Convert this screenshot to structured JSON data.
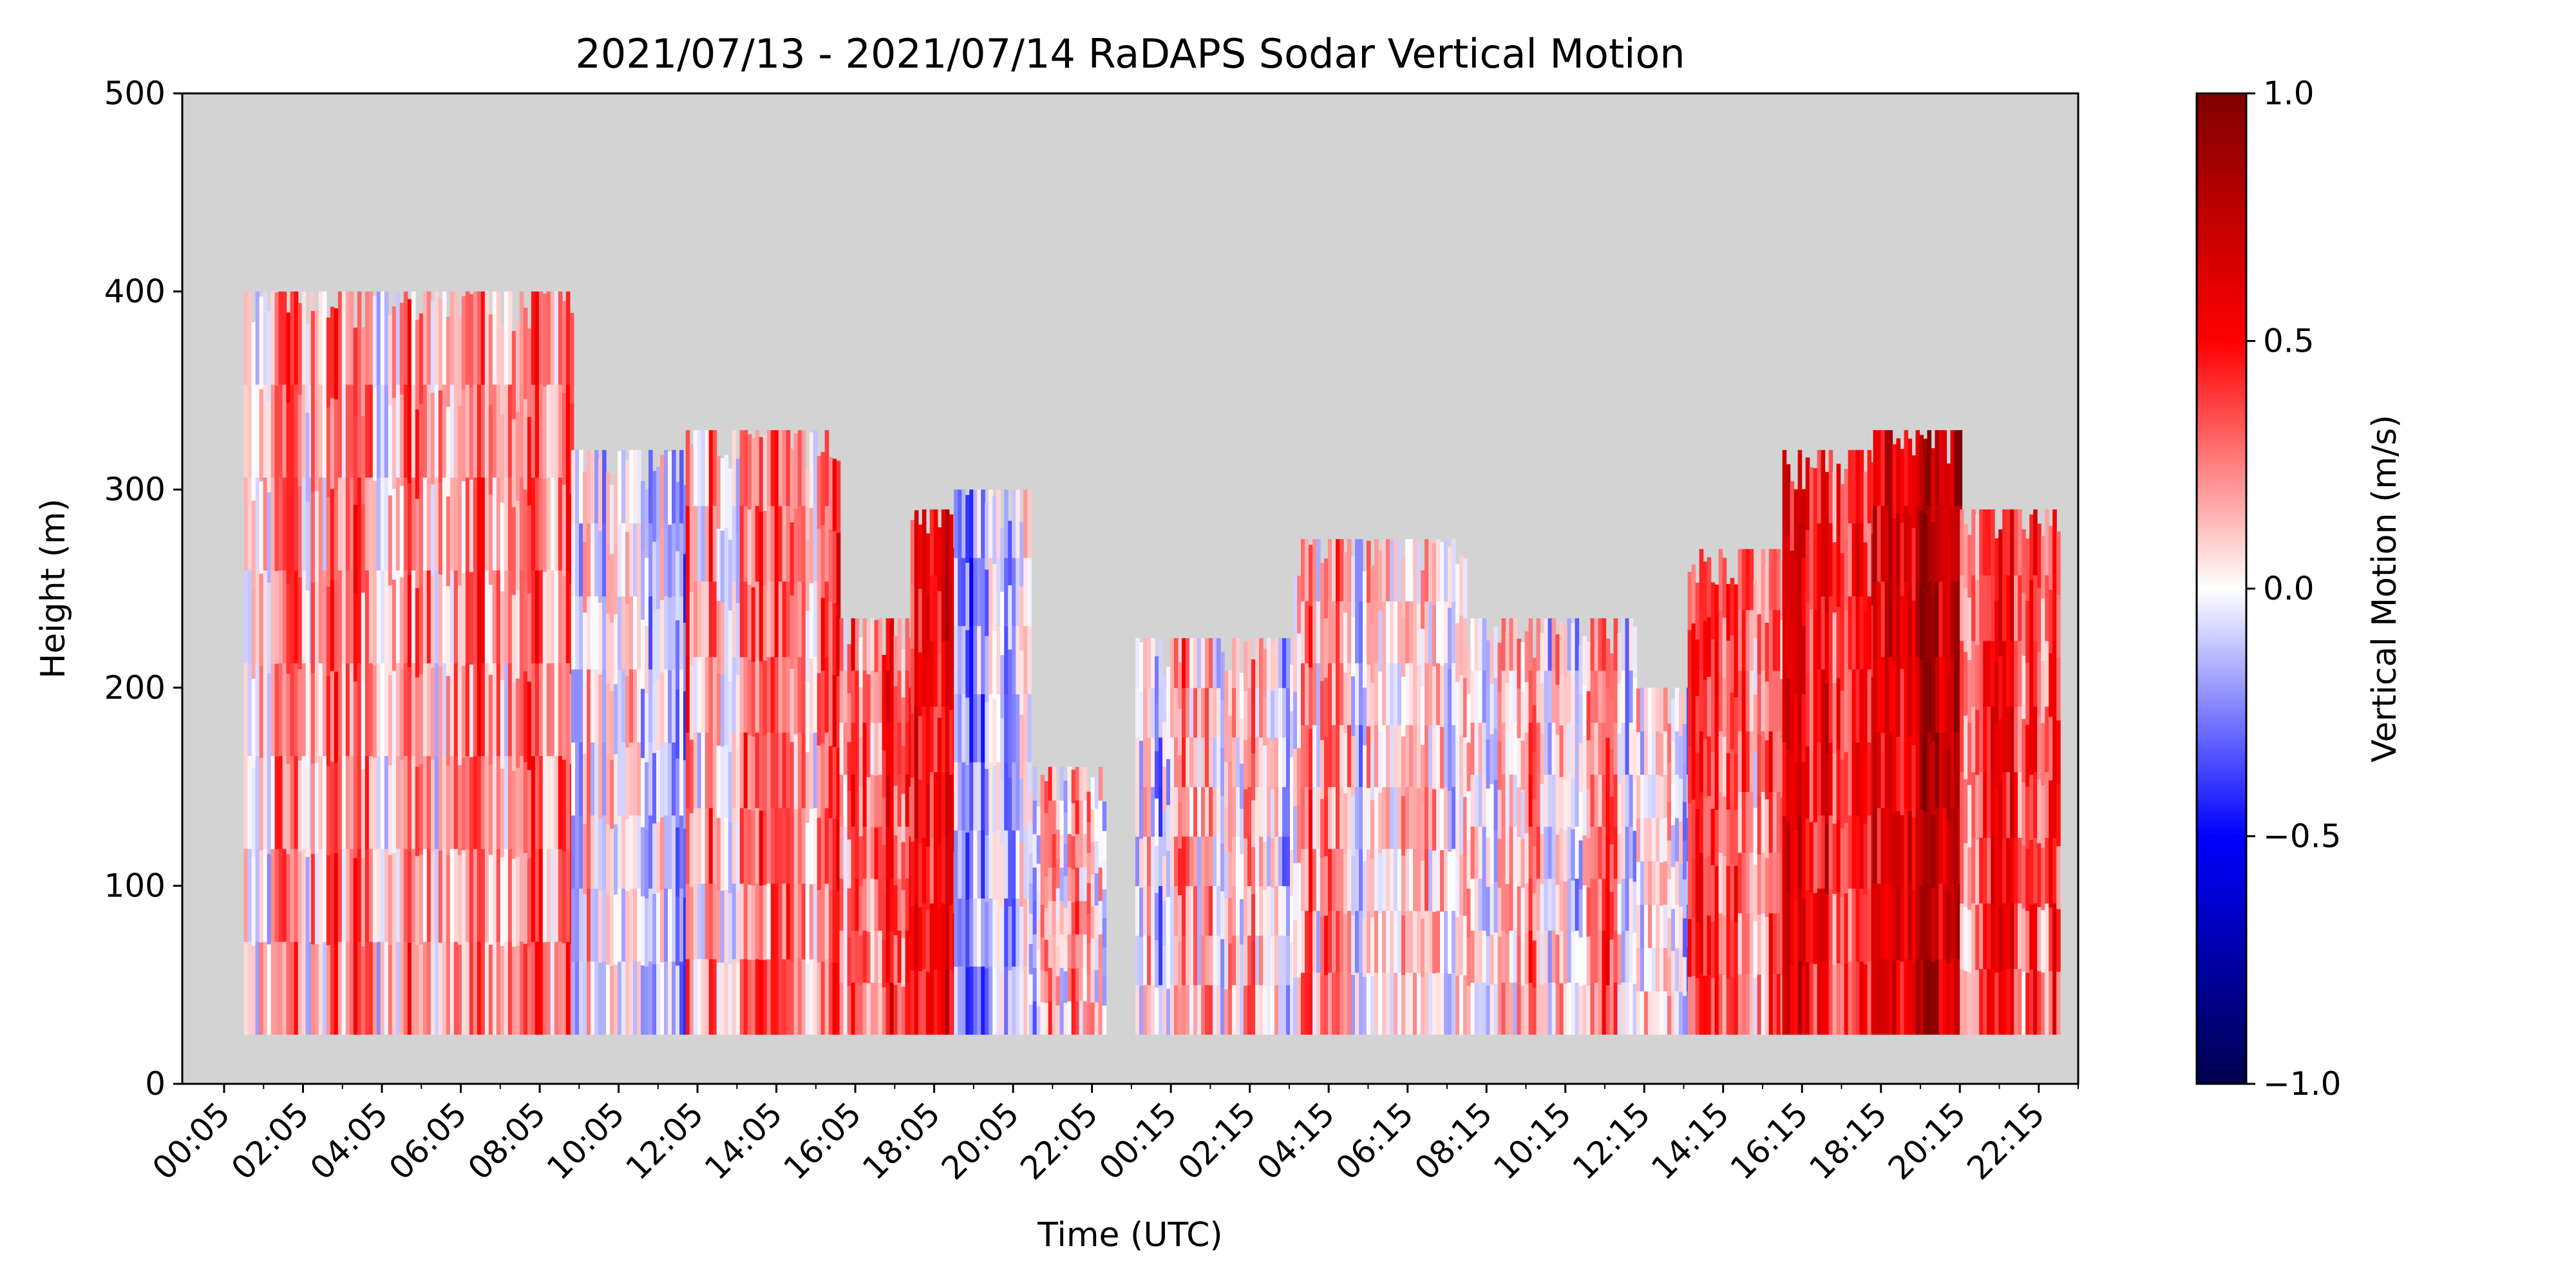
{
  "chart_data": {
    "type": "heatmap",
    "title": "2021/07/13 - 2021/07/14 RaDAPS Sodar Vertical Motion",
    "xlabel": "Time (UTC)",
    "ylabel": "Height (m)",
    "ylim": [
      0,
      500
    ],
    "y_ticks": [
      0,
      100,
      200,
      300,
      400,
      500
    ],
    "x_tick_labels": [
      "00:05",
      "02:05",
      "04:05",
      "06:05",
      "08:05",
      "10:05",
      "12:05",
      "14:05",
      "16:05",
      "18:05",
      "20:05",
      "22:05",
      "00:15",
      "02:15",
      "04:15",
      "06:15",
      "08:15",
      "10:15",
      "12:15",
      "14:15",
      "16:15",
      "18:15",
      "20:15",
      "22:15"
    ],
    "background_color": "#d3d3d3",
    "colorbar": {
      "label": "Vertical Motion (m/s)",
      "range": [
        -1.0,
        1.0
      ],
      "ticks": [
        "−1.0",
        "−0.5",
        "0.0",
        "0.5",
        "1.0"
      ],
      "colormap": "seismic"
    },
    "data_bottom_height_m": 25,
    "segments": [
      {
        "x_start": 0.5,
        "x_end": 2.2,
        "top_m": 400,
        "mean": 0.1
      },
      {
        "x_start": 2.2,
        "x_end": 8.8,
        "top_m": 400,
        "mean": 0.2
      },
      {
        "x_start": 8.8,
        "x_end": 11.7,
        "top_m": 320,
        "mean": 0.0
      },
      {
        "x_start": 11.7,
        "x_end": 15.6,
        "top_m": 330,
        "mean": 0.3
      },
      {
        "x_start": 15.6,
        "x_end": 17.4,
        "top_m": 235,
        "mean": 0.3
      },
      {
        "x_start": 17.4,
        "x_end": 18.5,
        "top_m": 290,
        "mean": 0.6
      },
      {
        "x_start": 18.5,
        "x_end": 20.4,
        "top_m": 300,
        "mean": -0.2
      },
      {
        "x_start": 20.4,
        "x_end": 22.3,
        "top_m": 160,
        "mean": 0.1
      },
      {
        "x_start": 23.1,
        "x_end": 27.1,
        "top_m": 225,
        "mean": 0.05
      },
      {
        "x_start": 27.1,
        "x_end": 31.5,
        "top_m": 275,
        "mean": 0.05
      },
      {
        "x_start": 31.5,
        "x_end": 35.8,
        "top_m": 235,
        "mean": 0.1
      },
      {
        "x_start": 35.8,
        "x_end": 37.1,
        "top_m": 200,
        "mean": 0.05
      },
      {
        "x_start": 37.1,
        "x_end": 39.5,
        "top_m": 270,
        "mean": 0.25
      },
      {
        "x_start": 39.5,
        "x_end": 41.8,
        "top_m": 320,
        "mean": 0.5
      },
      {
        "x_start": 41.8,
        "x_end": 44.0,
        "top_m": 330,
        "mean": 0.7
      },
      {
        "x_start": 44.0,
        "x_end": 46.5,
        "top_m": 290,
        "mean": 0.4
      }
    ]
  }
}
